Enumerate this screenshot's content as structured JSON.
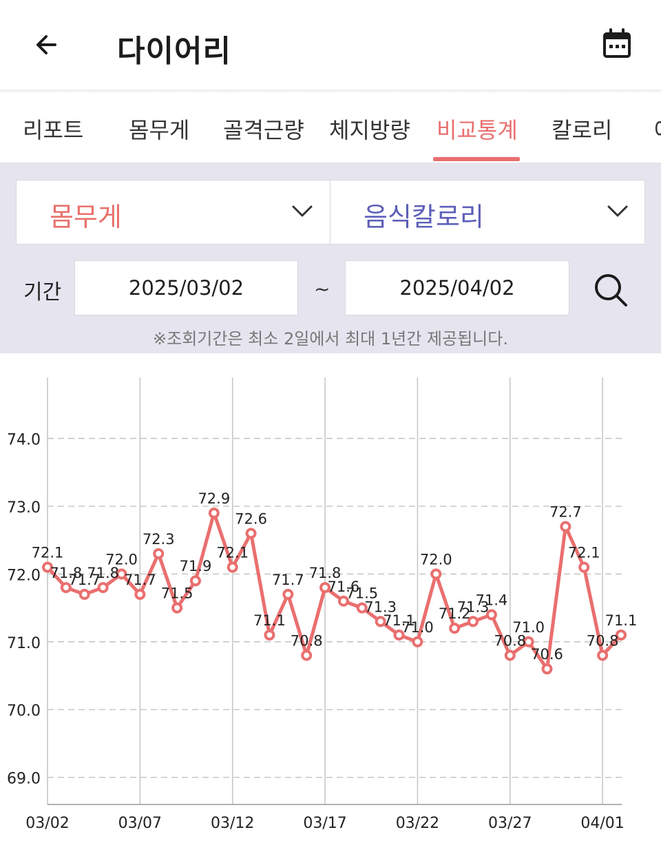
{
  "header": {
    "title": "다이어리",
    "back_icon": "arrow-left-icon",
    "calendar_icon": "calendar-icon"
  },
  "tabs": [
    {
      "label": "리포트",
      "active": false
    },
    {
      "label": "몸무게",
      "active": false
    },
    {
      "label": "골격근량",
      "active": false
    },
    {
      "label": "체지방량",
      "active": false
    },
    {
      "label": "비교통계",
      "active": true
    },
    {
      "label": "칼로리",
      "active": false
    },
    {
      "label": "예",
      "active": false
    }
  ],
  "filters": {
    "left_select": "몸무게",
    "right_select": "음식칼로리",
    "period_label": "기간",
    "start_date": "2025/03/02",
    "end_date": "2025/04/02",
    "separator": "~",
    "notice": "※조회기간은 최소 2일에서 최대 1년간 제공됩니다."
  },
  "colors": {
    "accent": "#ea6f6f",
    "secondary": "#5d5fb8",
    "filter_bg": "#e6e5ef"
  },
  "chart_data": {
    "type": "line",
    "x": [
      "03/02",
      "03/03",
      "03/04",
      "03/05",
      "03/06",
      "03/07",
      "03/08",
      "03/09",
      "03/10",
      "03/11",
      "03/12",
      "03/13",
      "03/14",
      "03/15",
      "03/16",
      "03/17",
      "03/18",
      "03/19",
      "03/20",
      "03/21",
      "03/22",
      "03/23",
      "03/24",
      "03/25",
      "03/26",
      "03/27",
      "03/28",
      "03/29",
      "03/30",
      "03/31",
      "04/01",
      "04/02"
    ],
    "series": [
      {
        "values": [
          72.1,
          71.8,
          71.7,
          71.8,
          72.0,
          71.7,
          72.3,
          71.5,
          71.9,
          72.9,
          72.1,
          72.6,
          71.1,
          71.7,
          70.8,
          71.8,
          71.6,
          71.5,
          71.3,
          71.1,
          71.0,
          72.0,
          71.2,
          71.3,
          71.4,
          70.8,
          71.0,
          70.6,
          72.7,
          72.1,
          70.8,
          71.1
        ],
        "color": "#ea6f6f"
      }
    ],
    "data_labels": [
      "72.1",
      "71.8",
      "71.7",
      "71.8",
      "72.0",
      "71.7",
      "72.3",
      "71.5",
      "71.9",
      "72.9",
      "72.1",
      "72.6",
      "71.1",
      "71.7",
      "70.8",
      "71.8",
      "71.6",
      "71.5",
      "71.3",
      "71.1",
      "71.0",
      "72.0",
      "71.2",
      "71.3",
      "71.4",
      "70.8",
      "71.0",
      "70.6",
      "72.7",
      "72.1",
      "70.8",
      "71.1"
    ],
    "y_ticks": [
      "69.0",
      "70.0",
      "71.0",
      "72.0",
      "73.0",
      "74.0"
    ],
    "x_ticks": [
      "03/02",
      "03/07",
      "03/12",
      "03/17",
      "03/22",
      "03/27",
      "04/01"
    ],
    "ylim": [
      68.6,
      74.9
    ],
    "grid": true,
    "legend": "none"
  }
}
